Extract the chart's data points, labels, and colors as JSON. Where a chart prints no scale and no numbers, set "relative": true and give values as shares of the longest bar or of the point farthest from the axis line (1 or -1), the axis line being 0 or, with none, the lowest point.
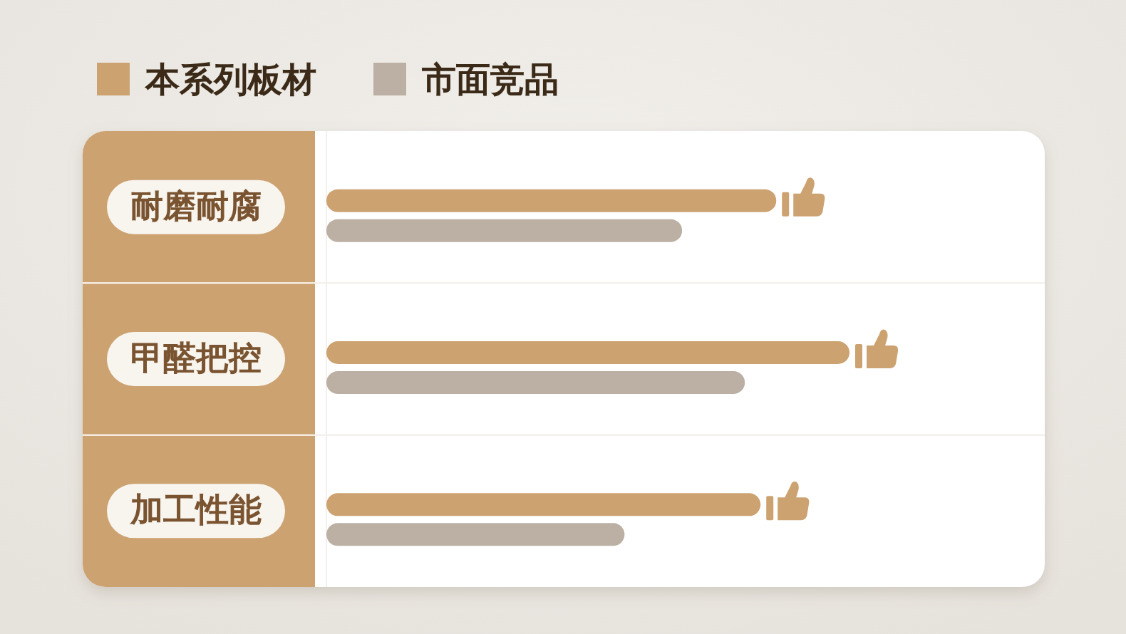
{
  "chart_data": {
    "type": "bar",
    "orientation": "horizontal",
    "relative": true,
    "categories": [
      "耐磨耐腐",
      "甲醛把控",
      "加工性能"
    ],
    "series": [
      {
        "name": "本系列板材",
        "color": "#cca271",
        "values": [
          0.86,
          1,
          0.83
        ]
      },
      {
        "name": "市面竞品",
        "color": "#bcb0a4",
        "values": [
          0.68,
          0.8,
          0.57
        ]
      }
    ],
    "legend": "top left"
  }
}
